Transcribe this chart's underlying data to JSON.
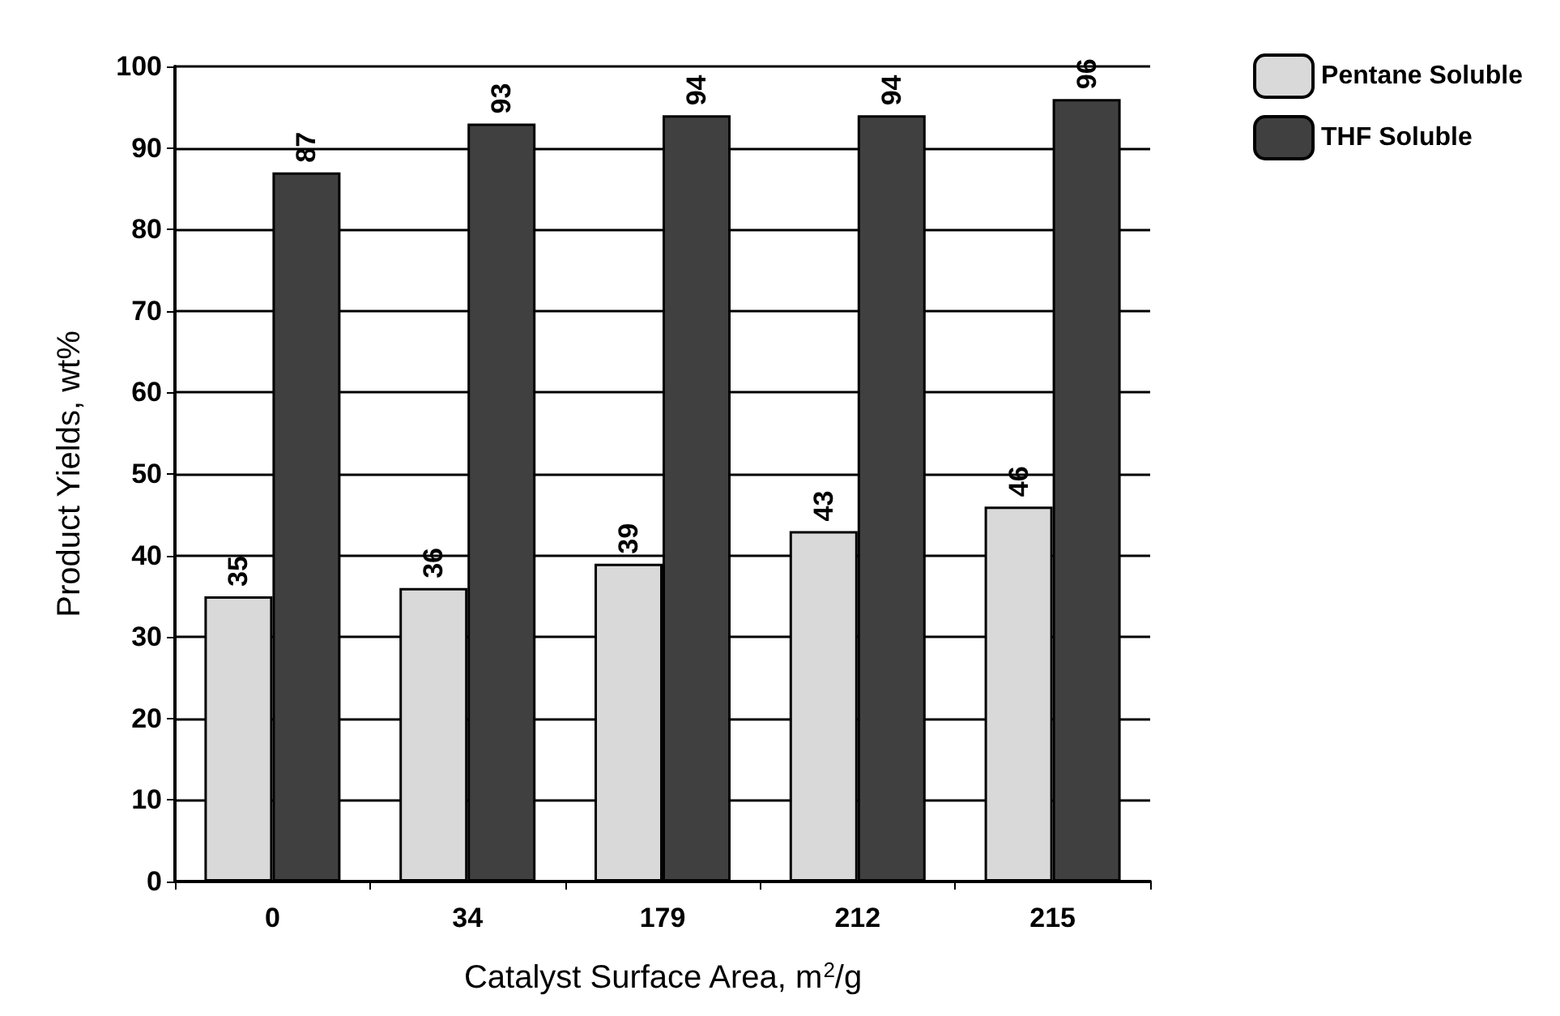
{
  "chart_data": {
    "type": "bar",
    "categories": [
      "0",
      "34",
      "179",
      "212",
      "215"
    ],
    "series": [
      {
        "name": "Pentane Soluble",
        "color": "#d9d9d9",
        "values": [
          35,
          36,
          39,
          43,
          46
        ]
      },
      {
        "name": "THF Soluble",
        "color": "#404040",
        "values": [
          87,
          93,
          94,
          94,
          96
        ]
      }
    ],
    "xlabel": "Catalyst Surface Area, m$^{2}$/g",
    "ylabel": "Product Yields, wt%",
    "ylim": [
      0,
      100
    ],
    "yticks": [
      0,
      10,
      20,
      30,
      40,
      50,
      60,
      70,
      80,
      90,
      100
    ],
    "grid": "y",
    "legend": "top right",
    "data_labels": true
  }
}
